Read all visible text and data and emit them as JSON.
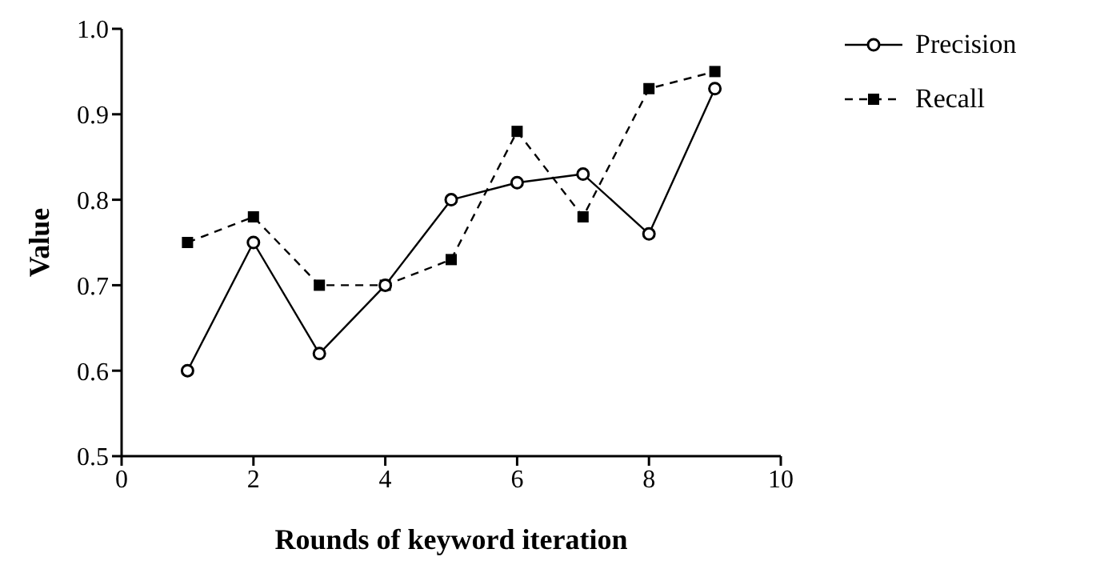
{
  "chart_data": {
    "type": "line",
    "xlabel": "Rounds of keyword iteration",
    "ylabel": "Value",
    "xlim": [
      0,
      10
    ],
    "xticks": [
      0,
      2,
      4,
      6,
      8,
      10
    ],
    "ylim": [
      0.5,
      1.0
    ],
    "yticks": [
      0.5,
      0.6,
      0.7,
      0.8,
      0.9,
      {
        "value": 1,
        "label": "1.0"
      }
    ],
    "grid": false,
    "legend": "top right",
    "series": [
      {
        "name": "Precision",
        "color": "#000000",
        "marker": "circle",
        "line_style": "solid",
        "x": [
          1,
          2,
          3,
          4,
          5,
          6,
          7,
          8,
          9
        ],
        "values": [
          0.6,
          0.75,
          0.62,
          0.7,
          0.8,
          0.82,
          0.83,
          0.76,
          0.93
        ]
      },
      {
        "name": "Recall",
        "color": "#000000",
        "marker": "square",
        "line_style": "dashed",
        "x": [
          1,
          2,
          3,
          4,
          5,
          6,
          7,
          8,
          9
        ],
        "values": [
          0.75,
          0.78,
          0.7,
          0.7,
          0.73,
          0.88,
          0.78,
          0.93,
          0.95
        ]
      }
    ]
  }
}
